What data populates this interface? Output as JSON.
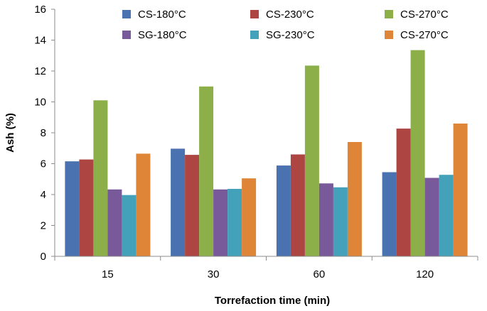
{
  "chart_data": {
    "type": "bar",
    "title": "",
    "xlabel": "Torrefaction time (min)",
    "ylabel": "Ash (%)",
    "ylim": [
      0,
      16
    ],
    "yticks": [
      0,
      2,
      4,
      6,
      8,
      10,
      12,
      14,
      16
    ],
    "categories": [
      "15",
      "30",
      "60",
      "120"
    ],
    "grid": false,
    "legend_position": "top",
    "series": [
      {
        "name": "CS-180°C",
        "color": "#4a72b0",
        "values": [
          6.15,
          6.97,
          5.88,
          5.45
        ]
      },
      {
        "name": "CS-230°C",
        "color": "#ad4542",
        "values": [
          6.27,
          6.57,
          6.6,
          8.27
        ]
      },
      {
        "name": "CS-270°C",
        "color": "#8caf49",
        "values": [
          10.1,
          11.0,
          12.35,
          13.35
        ]
      },
      {
        "name": "SG-180°C",
        "color": "#78599a",
        "values": [
          4.33,
          4.33,
          4.72,
          5.08
        ]
      },
      {
        "name": "SG-230°C",
        "color": "#43a1ba",
        "values": [
          3.97,
          4.37,
          4.47,
          5.28
        ]
      },
      {
        "name": "CS-270°C",
        "color": "#df8537",
        "values": [
          6.65,
          5.05,
          7.4,
          8.6
        ]
      }
    ]
  }
}
